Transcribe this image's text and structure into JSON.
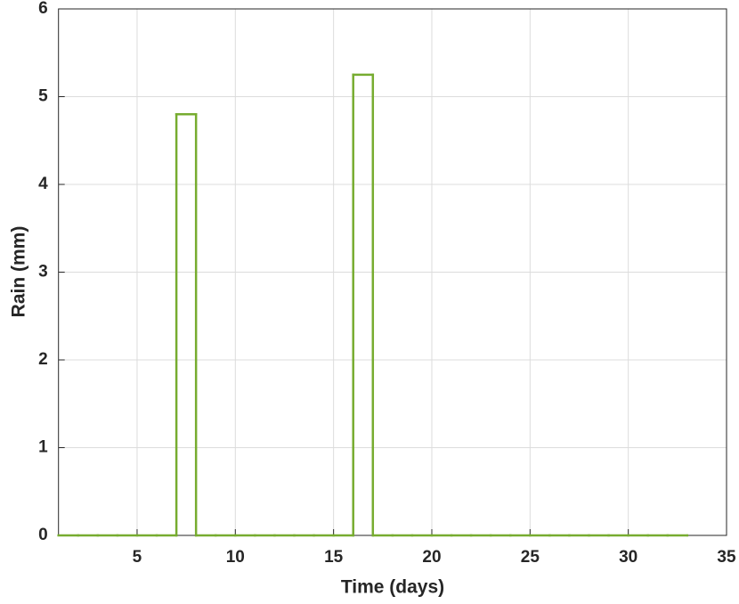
{
  "chart_data": {
    "type": "stairs",
    "xlabel": "Time (days)",
    "ylabel": "Rain (mm)",
    "x": [
      1,
      2,
      3,
      4,
      5,
      6,
      7,
      8,
      9,
      10,
      11,
      12,
      13,
      14,
      15,
      16,
      17,
      18,
      19,
      20,
      21,
      22,
      23,
      24,
      25,
      26,
      27,
      28,
      29,
      30,
      31,
      32,
      33
    ],
    "values": [
      0,
      0,
      0,
      0,
      0,
      0,
      4.8,
      0,
      0,
      0,
      0,
      0,
      0,
      0,
      0,
      5.25,
      0,
      0,
      0,
      0,
      0,
      0,
      0,
      0,
      0,
      0,
      0,
      0,
      0,
      0,
      0,
      0,
      0
    ],
    "color": "#77ac30",
    "xlim": [
      1,
      35
    ],
    "xticks": [
      5,
      10,
      15,
      20,
      25,
      30,
      35
    ],
    "ylim": [
      0,
      6
    ],
    "yticks": [
      0,
      1,
      2,
      3,
      4,
      5,
      6
    ],
    "grid": true
  }
}
